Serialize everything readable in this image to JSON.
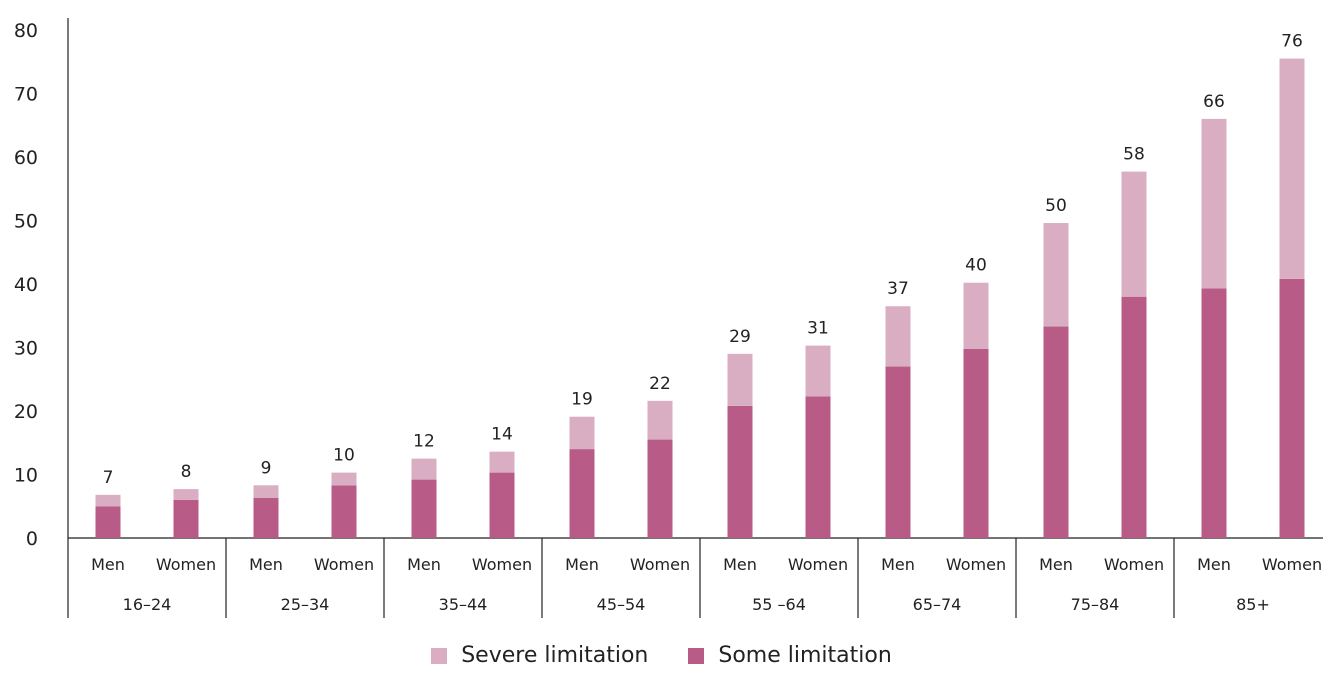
{
  "chart_data": {
    "type": "bar",
    "stacked": true,
    "groups": [
      "16–24",
      "25–34",
      "35–44",
      "45–54",
      "55 –64",
      "65–74",
      "75–84",
      "85+"
    ],
    "sexes": [
      "Men",
      "Women"
    ],
    "series": [
      {
        "name": "Some limitation",
        "color": "#b85b86",
        "values": [
          5,
          6,
          6.3,
          8.3,
          9.2,
          10.3,
          14,
          15.5,
          20.8,
          22.3,
          27,
          29.8,
          33.3,
          38,
          39.3,
          40.8
        ]
      },
      {
        "name": "Severe limitation",
        "color": "#d9aec3",
        "values": [
          1.8,
          1.7,
          2,
          2,
          3.3,
          3.3,
          5.1,
          6.1,
          8.2,
          8,
          9.5,
          10.4,
          16.3,
          19.7,
          26.7,
          34.7
        ]
      }
    ],
    "totals": [
      "7",
      "8",
      "9",
      "10",
      "12",
      "14",
      "19",
      "22",
      "29",
      "31",
      "37",
      "40",
      "50",
      "58",
      "66",
      "76"
    ],
    "yticks": [
      "0",
      "10",
      "20",
      "30",
      "40",
      "50",
      "60",
      "70",
      "80"
    ],
    "ylim": [
      0,
      80
    ],
    "legend_position": "bottom-center"
  },
  "legend": {
    "severe_label": "Severe limitation",
    "some_label": "Some limitation",
    "severe_color": "#d9aec3",
    "some_color": "#b85b86"
  }
}
